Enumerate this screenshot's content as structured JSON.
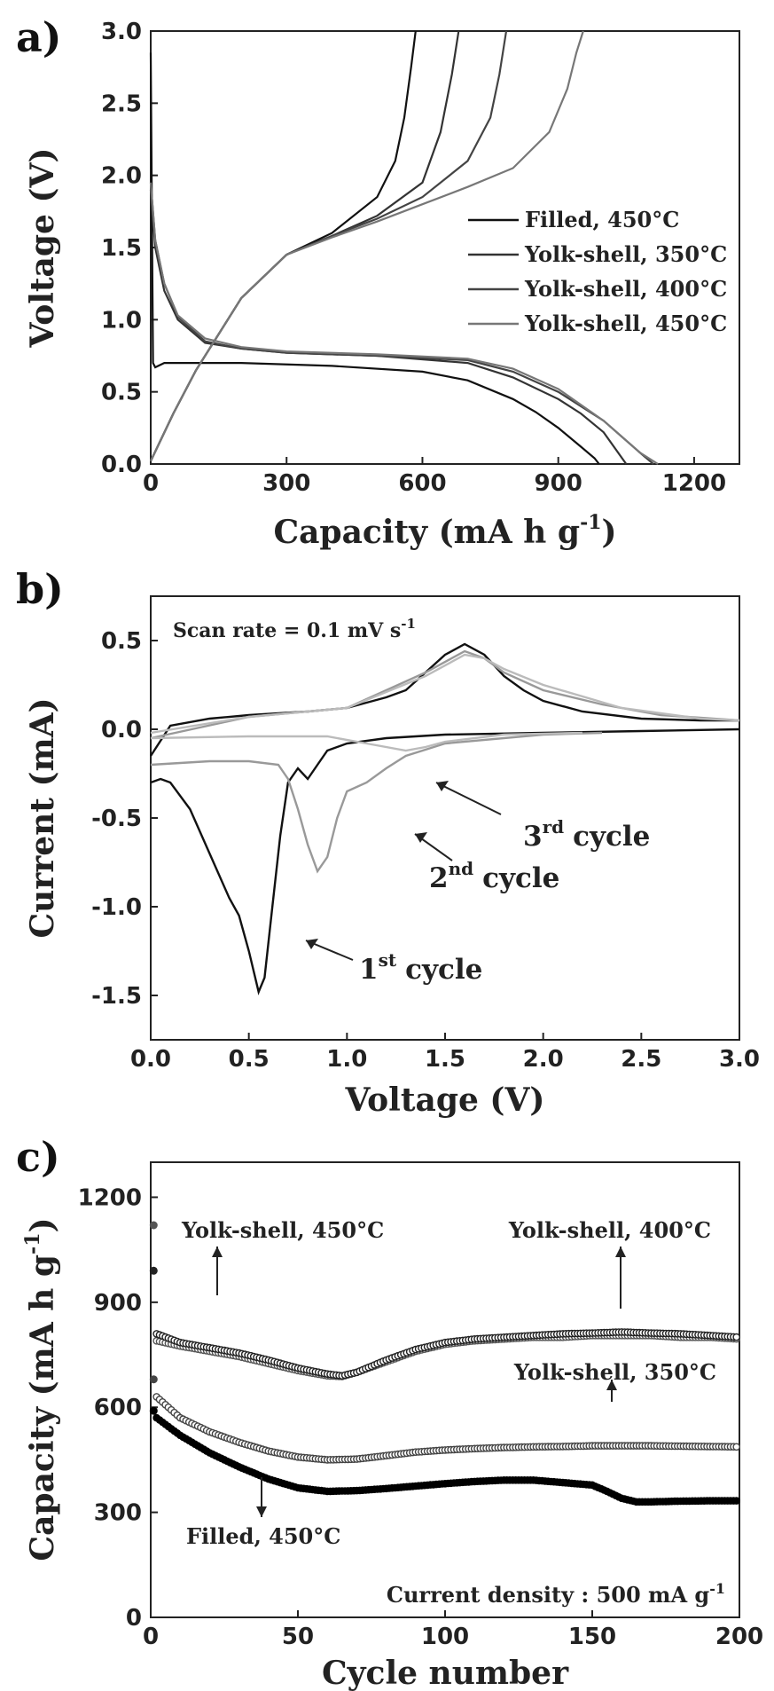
{
  "panels": [
    {
      "letter": "a)",
      "chart_data": {
        "type": "line",
        "xlabel": "Capacity (mA h g",
        "xlabel_sup": "-1",
        "xlabel_end": ")",
        "ylabel": "Voltage (V)",
        "xlim": [
          0,
          1300
        ],
        "ylim": [
          0,
          3.0
        ],
        "xticks": [
          "0",
          "300",
          "600",
          "900",
          "1200"
        ],
        "yticks": [
          "0.0",
          "0.5",
          "1.0",
          "1.5",
          "2.0",
          "2.5",
          "3.0"
        ],
        "legend_position": "center-right",
        "series": [
          {
            "name": "Filled, 450°C",
            "color": "#111111",
            "discharge": {
              "x": [
                0,
                5,
                10,
                30,
                100,
                200,
                400,
                600,
                700,
                800,
                850,
                900,
                950,
                980,
                990
              ],
              "y": [
                2.85,
                0.7,
                0.67,
                0.7,
                0.7,
                0.7,
                0.68,
                0.64,
                0.58,
                0.45,
                0.36,
                0.25,
                0.12,
                0.04,
                0.0
              ]
            },
            "charge": {
              "x": [
                0,
                50,
                100,
                200,
                300,
                400,
                500,
                540,
                560,
                575,
                585
              ],
              "y": [
                0.02,
                0.35,
                0.65,
                1.15,
                1.45,
                1.6,
                1.85,
                2.1,
                2.4,
                2.75,
                3.0
              ]
            }
          },
          {
            "name": "Yolk-shell, 350°C",
            "color": "#333333",
            "discharge": {
              "x": [
                0,
                10,
                30,
                60,
                120,
                200,
                300,
                500,
                700,
                800,
                900,
                950,
                1000,
                1050
              ],
              "y": [
                1.9,
                1.5,
                1.2,
                1.0,
                0.84,
                0.8,
                0.77,
                0.75,
                0.7,
                0.6,
                0.45,
                0.35,
                0.22,
                0.0
              ]
            },
            "charge": {
              "x": [
                0,
                50,
                100,
                200,
                300,
                400,
                500,
                600,
                640,
                665,
                680
              ],
              "y": [
                0.02,
                0.35,
                0.65,
                1.15,
                1.45,
                1.58,
                1.72,
                1.95,
                2.3,
                2.7,
                3.0
              ]
            }
          },
          {
            "name": "Yolk-shell, 400°C",
            "color": "#444444",
            "discharge": {
              "x": [
                0,
                10,
                30,
                60,
                120,
                200,
                300,
                500,
                700,
                800,
                900,
                1000,
                1080,
                1110
              ],
              "y": [
                1.95,
                1.55,
                1.25,
                1.02,
                0.85,
                0.8,
                0.77,
                0.75,
                0.72,
                0.64,
                0.5,
                0.3,
                0.08,
                0.0
              ]
            },
            "charge": {
              "x": [
                0,
                50,
                100,
                200,
                300,
                400,
                500,
                600,
                700,
                750,
                770,
                785
              ],
              "y": [
                0.02,
                0.35,
                0.65,
                1.15,
                1.45,
                1.58,
                1.7,
                1.85,
                2.1,
                2.4,
                2.7,
                3.0
              ]
            }
          },
          {
            "name": "Yolk-shell, 450°C",
            "color": "#777777",
            "discharge": {
              "x": [
                0,
                10,
                30,
                60,
                120,
                200,
                300,
                500,
                700,
                800,
                900,
                1000,
                1080,
                1120
              ],
              "y": [
                1.95,
                1.55,
                1.25,
                1.03,
                0.87,
                0.81,
                0.78,
                0.76,
                0.73,
                0.66,
                0.52,
                0.3,
                0.08,
                0.0
              ]
            },
            "charge": {
              "x": [
                0,
                50,
                100,
                200,
                300,
                400,
                500,
                600,
                700,
                800,
                880,
                920,
                940,
                955
              ],
              "y": [
                0.02,
                0.35,
                0.65,
                1.15,
                1.45,
                1.57,
                1.68,
                1.8,
                1.92,
                2.05,
                2.3,
                2.6,
                2.85,
                3.0
              ]
            }
          }
        ]
      }
    },
    {
      "letter": "b)",
      "annotation_scan": "Scan rate = 0.1 mV s",
      "annotation_scan_sup": "-1",
      "cycle_labels": [
        {
          "num": "1",
          "sup": "st",
          "text": "cycle"
        },
        {
          "num": "2",
          "sup": "nd",
          "text": "cycle"
        },
        {
          "num": "3",
          "sup": "rd",
          "text": "cycle"
        }
      ],
      "chart_data": {
        "type": "line",
        "xlabel": "Voltage (V)",
        "ylabel": "Current (mA)",
        "xlim": [
          0,
          3.0
        ],
        "ylim": [
          -1.75,
          0.75
        ],
        "xticks": [
          "0.0",
          "0.5",
          "1.0",
          "1.5",
          "2.0",
          "2.5",
          "3.0"
        ],
        "yticks": [
          "-1.5",
          "-1.0",
          "-0.5",
          "0.0",
          "0.5"
        ],
        "series": [
          {
            "label_index": 0,
            "color": "#111111",
            "reduction": {
              "x": [
                0.0,
                0.05,
                0.1,
                0.2,
                0.3,
                0.4,
                0.45,
                0.5,
                0.55,
                0.58,
                0.62,
                0.66,
                0.7,
                0.75,
                0.8,
                0.85,
                0.9,
                1.0,
                1.2,
                1.5,
                2.0,
                2.5,
                3.0
              ],
              "y": [
                -0.3,
                -0.28,
                -0.3,
                -0.45,
                -0.7,
                -0.95,
                -1.05,
                -1.25,
                -1.48,
                -1.4,
                -1.0,
                -0.6,
                -0.3,
                -0.22,
                -0.28,
                -0.2,
                -0.12,
                -0.08,
                -0.05,
                -0.03,
                -0.02,
                -0.01,
                0.0
              ]
            },
            "oxidation": {
              "x": [
                0.0,
                0.1,
                0.3,
                0.5,
                0.8,
                1.0,
                1.2,
                1.3,
                1.4,
                1.5,
                1.6,
                1.7,
                1.8,
                1.9,
                2.0,
                2.2,
                2.5,
                2.8,
                3.0
              ],
              "y": [
                -0.15,
                0.02,
                0.06,
                0.08,
                0.1,
                0.12,
                0.18,
                0.22,
                0.32,
                0.42,
                0.48,
                0.42,
                0.3,
                0.22,
                0.16,
                0.1,
                0.06,
                0.05,
                0.05
              ]
            }
          },
          {
            "label_index": 1,
            "color": "#999999",
            "reduction": {
              "x": [
                0.0,
                0.3,
                0.5,
                0.65,
                0.7,
                0.75,
                0.8,
                0.85,
                0.9,
                0.95,
                1.0,
                1.1,
                1.2,
                1.3,
                1.5,
                2.0,
                2.3
              ],
              "y": [
                -0.2,
                -0.18,
                -0.18,
                -0.2,
                -0.28,
                -0.45,
                -0.65,
                -0.8,
                -0.72,
                -0.5,
                -0.35,
                -0.3,
                -0.22,
                -0.15,
                -0.08,
                -0.03,
                -0.02
              ]
            },
            "oxidation": {
              "x": [
                0.0,
                0.5,
                1.0,
                1.4,
                1.6,
                1.7,
                1.8,
                2.0,
                2.3,
                2.6,
                3.0
              ],
              "y": [
                -0.05,
                0.07,
                0.12,
                0.32,
                0.44,
                0.4,
                0.32,
                0.22,
                0.14,
                0.08,
                0.05
              ]
            }
          },
          {
            "label_index": 2,
            "color": "#bbbbbb",
            "reduction": {
              "x": [
                0.0,
                0.5,
                0.9,
                1.1,
                1.3,
                1.4,
                1.5,
                1.8,
                2.2
              ],
              "y": [
                -0.05,
                -0.04,
                -0.04,
                -0.08,
                -0.12,
                -0.1,
                -0.07,
                -0.03,
                -0.02
              ]
            },
            "oxidation": {
              "x": [
                0.0,
                0.5,
                1.0,
                1.4,
                1.6,
                1.7,
                1.8,
                2.0,
                2.4,
                2.8,
                3.0
              ],
              "y": [
                -0.02,
                0.07,
                0.12,
                0.3,
                0.42,
                0.4,
                0.34,
                0.25,
                0.12,
                0.06,
                0.05
              ]
            }
          }
        ]
      }
    },
    {
      "letter": "c)",
      "annotation_current": "Current density : 500 mA g",
      "annotation_current_sup": "-1",
      "chart_data": {
        "type": "scatter",
        "xlabel": "Cycle number",
        "ylabel": "Capacity (mA h g",
        "ylabel_sup": "-1",
        "ylabel_end": ")",
        "xlim": [
          0,
          200
        ],
        "ylim": [
          0,
          1300
        ],
        "xticks": [
          "0",
          "50",
          "100",
          "150",
          "200"
        ],
        "yticks": [
          "0",
          "300",
          "600",
          "900",
          "1200"
        ],
        "series": [
          {
            "name": "Yolk-shell, 450°C",
            "color": "#555555",
            "first": 1120,
            "x": [
              2,
              10,
              20,
              30,
              40,
              50,
              60,
              65,
              70,
              80,
              90,
              100,
              110,
              120,
              130,
              140,
              150,
              160,
              170,
              180,
              190,
              200
            ],
            "y": [
              790,
              775,
              760,
              745,
              725,
              705,
              690,
              688,
              700,
              730,
              760,
              780,
              790,
              795,
              800,
              800,
              805,
              805,
              805,
              800,
              800,
              795
            ]
          },
          {
            "name": "Yolk-shell, 400°C",
            "color": "#222222",
            "first": 990,
            "x": [
              2,
              10,
              20,
              30,
              40,
              50,
              60,
              65,
              70,
              80,
              90,
              100,
              110,
              120,
              130,
              140,
              150,
              160,
              170,
              180,
              190,
              200
            ],
            "y": [
              810,
              785,
              770,
              755,
              735,
              712,
              695,
              690,
              700,
              735,
              765,
              785,
              795,
              800,
              805,
              810,
              812,
              815,
              812,
              810,
              805,
              800
            ]
          },
          {
            "name": "Yolk-shell, 350°C",
            "color": "#444444",
            "first": 680,
            "x": [
              2,
              10,
              20,
              30,
              40,
              50,
              60,
              70,
              80,
              90,
              100,
              110,
              120,
              130,
              140,
              150,
              160,
              170,
              180,
              190,
              200
            ],
            "y": [
              630,
              570,
              530,
              500,
              475,
              458,
              450,
              452,
              462,
              472,
              478,
              482,
              485,
              487,
              488,
              490,
              490,
              490,
              489,
              488,
              487
            ]
          },
          {
            "name": "Filled, 450°C",
            "color": "#000000",
            "first": 590,
            "x": [
              2,
              10,
              20,
              30,
              40,
              50,
              60,
              70,
              80,
              90,
              100,
              110,
              120,
              130,
              140,
              150,
              155,
              160,
              165,
              170,
              180,
              190,
              200
            ],
            "y": [
              570,
              520,
              470,
              430,
              395,
              370,
              360,
              362,
              368,
              375,
              382,
              388,
              392,
              392,
              385,
              378,
              360,
              340,
              330,
              330,
              332,
              333,
              333
            ]
          }
        ],
        "labels": [
          "Yolk-shell, 450°C",
          "Yolk-shell, 400°C",
          "Yolk-shell, 350°C",
          "Filled, 450°C"
        ]
      }
    }
  ]
}
